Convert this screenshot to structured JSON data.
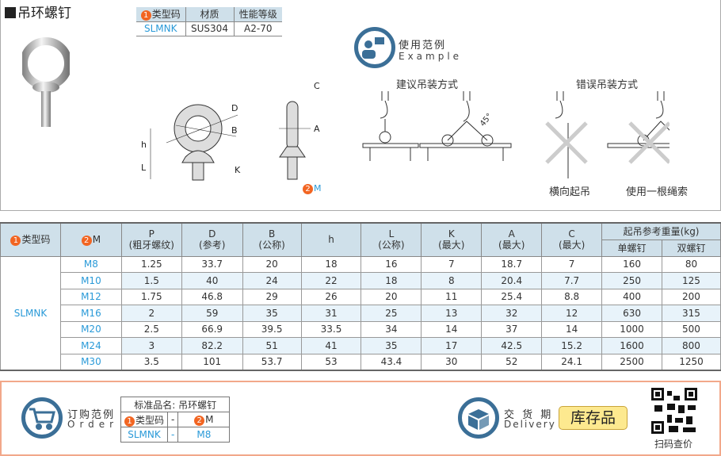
{
  "title": "吊环螺钉",
  "material_table": {
    "headers": [
      "类型码",
      "材质",
      "性能等级"
    ],
    "num1": "1",
    "row": [
      "SLMNK",
      "SUS304",
      "A2-70"
    ]
  },
  "drawing": {
    "dims": [
      "D",
      "B",
      "h",
      "L",
      "K",
      "C",
      "A"
    ],
    "m_num": "2",
    "m_label": "M"
  },
  "example": {
    "title": "使用范例",
    "subtitle": "Example",
    "recommended": "建议吊装方式",
    "wrong": "错误吊装方式",
    "angle": "45°",
    "wrong1": "横向起吊",
    "wrong2": "使用一根绳索"
  },
  "spec": {
    "h_type": "类型码",
    "h_m": "M",
    "cols": [
      [
        "P",
        "(粗牙螺纹)"
      ],
      [
        "D",
        "(参考)"
      ],
      [
        "B",
        "(公称)"
      ],
      [
        "h",
        ""
      ],
      [
        "L",
        "(公称)"
      ],
      [
        "K",
        "(最大)"
      ],
      [
        "A",
        "(最大)"
      ],
      [
        "C",
        "(最大)"
      ]
    ],
    "load_title": "起吊参考重量(kg)",
    "load_cols": [
      "单螺钉",
      "双螺钉"
    ],
    "type": "SLMNK",
    "rows": [
      [
        "M8",
        "1.25",
        "33.7",
        "20",
        "18",
        "16",
        "7",
        "18.7",
        "7",
        "160",
        "80"
      ],
      [
        "M10",
        "1.5",
        "40",
        "24",
        "22",
        "18",
        "8",
        "20.4",
        "7.7",
        "250",
        "125"
      ],
      [
        "M12",
        "1.75",
        "46.8",
        "29",
        "26",
        "20",
        "11",
        "25.4",
        "8.8",
        "400",
        "200"
      ],
      [
        "M16",
        "2",
        "59",
        "35",
        "31",
        "25",
        "13",
        "32",
        "12",
        "630",
        "315"
      ],
      [
        "M20",
        "2.5",
        "66.9",
        "39.5",
        "33.5",
        "34",
        "14",
        "37",
        "14",
        "1000",
        "500"
      ],
      [
        "M24",
        "3",
        "82.2",
        "51",
        "41",
        "35",
        "17",
        "42.5",
        "15.2",
        "1600",
        "800"
      ],
      [
        "M30",
        "3.5",
        "101",
        "53.7",
        "53",
        "43.4",
        "30",
        "52",
        "24.1",
        "2500",
        "1250"
      ]
    ]
  },
  "order": {
    "title": "订购范例",
    "subtitle": "Order",
    "std_name": "标准品名: 吊环螺钉",
    "h_type": "类型码",
    "h_sep": "-",
    "h_m": "M",
    "v_type": "SLMNK",
    "v_sep": "-",
    "v_m": "M8"
  },
  "delivery": {
    "title": "交 货 期",
    "subtitle": "Delivery",
    "badge": "库存品"
  },
  "qr": {
    "label": "扫码查价"
  },
  "colors": {
    "accent": "#2a9ad8",
    "header_bg": "#cfe0ea",
    "badge": "#f26522",
    "icon": "#3b6f97",
    "stock": "#fde98f"
  }
}
